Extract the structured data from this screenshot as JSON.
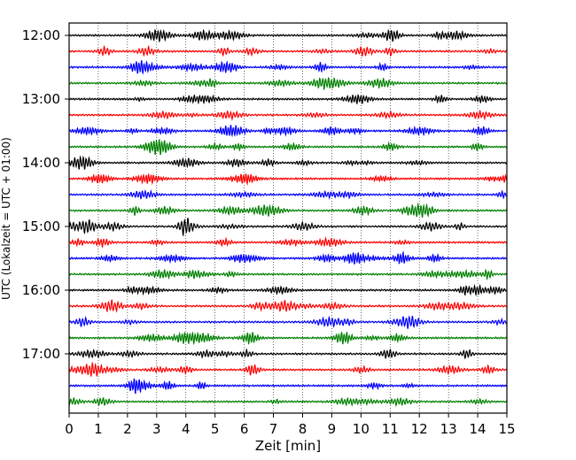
{
  "chart_data": {
    "type": "line",
    "xlabel": "Zeit  [min]",
    "ylabel": "UTC (Lokalzeit = UTC + 01:00)",
    "xlim": [
      0,
      15
    ],
    "xticks": [
      "0",
      "1",
      "2",
      "3",
      "4",
      "5",
      "6",
      "7",
      "8",
      "9",
      "10",
      "11",
      "12",
      "13",
      "14",
      "15"
    ],
    "grid": "vertical-dotted",
    "y_tick_labels": [
      "12:00",
      "13:00",
      "14:00",
      "15:00",
      "16:00",
      "17:00"
    ],
    "trace_interval_min": 15,
    "trace_count": 24,
    "trace_colors": [
      "#000000",
      "#ff0000",
      "#0000ff",
      "#008000"
    ],
    "first_trace_time": "12:00",
    "last_trace_time": "17:45"
  }
}
